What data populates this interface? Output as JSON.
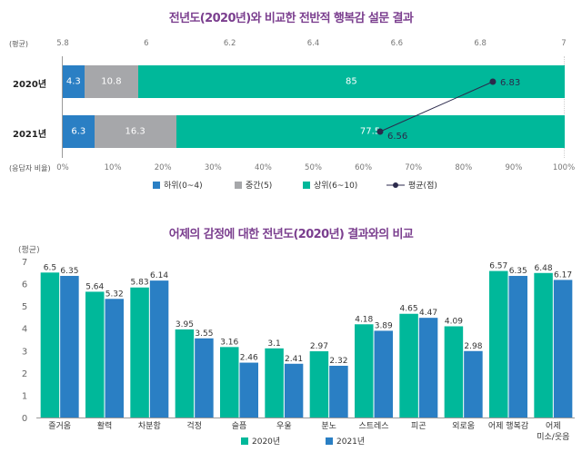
{
  "chart_data": [
    {
      "type": "bar",
      "orientation": "horizontal-stacked",
      "title": "전년도(2020년)와 비교한 전반적 행복감 설문 결과",
      "categories": [
        "2020년",
        "2021년"
      ],
      "xlabel": "(응답자 비율)",
      "x_ticks": [
        "0%",
        "10%",
        "20%",
        "30%",
        "40%",
        "50%",
        "60%",
        "70%",
        "80%",
        "90%",
        "100%"
      ],
      "xlim": [
        0,
        100
      ],
      "series": [
        {
          "name": "하위(0~4)",
          "color": "#2a7fc4",
          "values": [
            4.3,
            6.3
          ]
        },
        {
          "name": "중간(5)",
          "color": "#a6a7aa",
          "values": [
            10.8,
            16.3
          ]
        },
        {
          "name": "상위(6~10)",
          "color": "#00b89a",
          "values": [
            85,
            77.5
          ]
        }
      ],
      "overlay_line": {
        "name": "평균(점)",
        "color": "#2b2a4c",
        "axis_label": "(평균)",
        "axis_ticks": [
          "5.8",
          "6",
          "6.2",
          "6.4",
          "6.6",
          "6.8",
          "7"
        ],
        "axis_range": [
          5.8,
          7
        ],
        "values": [
          6.83,
          6.56
        ],
        "labels": [
          "6.83",
          "6.56"
        ]
      },
      "legend": {
        "position": "bottom",
        "items": [
          {
            "label": "하위(0~4)",
            "color": "#2a7fc4",
            "marker": "square"
          },
          {
            "label": "중간(5)",
            "color": "#a6a7aa",
            "marker": "square"
          },
          {
            "label": "상위(6~10)",
            "color": "#00b89a",
            "marker": "square"
          },
          {
            "label": "평균(점)",
            "color": "#2b2a4c",
            "marker": "line-dot"
          }
        ]
      }
    },
    {
      "type": "bar",
      "orientation": "vertical-grouped",
      "title": "어제의 감정에 대한 전년도(2020년) 결과와의 비교",
      "ylabel": "(평균)",
      "ylim": [
        0,
        7
      ],
      "y_ticks": [
        "0",
        "1",
        "2",
        "3",
        "4",
        "5",
        "6",
        "7"
      ],
      "grid": false,
      "categories": [
        "즐거움",
        "활력",
        "차분함",
        "걱정",
        "슬픔",
        "우울",
        "분노",
        "스트레스",
        "피곤",
        "외로움",
        "어제 행복감",
        "어제\n미소/웃음"
      ],
      "category_lines": [
        [
          "즐거움"
        ],
        [
          "활력"
        ],
        [
          "차분함"
        ],
        [
          "걱정"
        ],
        [
          "슬픔"
        ],
        [
          "우울"
        ],
        [
          "분노"
        ],
        [
          "스트레스"
        ],
        [
          "피곤"
        ],
        [
          "외로움"
        ],
        [
          "어제 행복감"
        ],
        [
          "어제",
          "미소/웃음"
        ]
      ],
      "series": [
        {
          "name": "2020년",
          "color": "#00b89a",
          "values": [
            6.5,
            5.64,
            5.83,
            3.95,
            3.16,
            3.1,
            2.97,
            4.18,
            4.65,
            4.09,
            6.57,
            6.48
          ],
          "labels": [
            "6.5",
            "5.64",
            "5.83",
            "3.95",
            "3.16",
            "3.1",
            "2.97",
            "4.18",
            "4.65",
            "4.09",
            "6.57",
            "6.48"
          ]
        },
        {
          "name": "2021년",
          "color": "#2a7fc4",
          "values": [
            6.35,
            5.32,
            6.14,
            3.55,
            2.46,
            2.41,
            2.32,
            3.89,
            4.47,
            2.98,
            6.35,
            6.17
          ],
          "labels": [
            "6.35",
            "5.32",
            "6.14",
            "3.55",
            "2.46",
            "2.41",
            "2.32",
            "3.89",
            "4.47",
            "2.98",
            "6.35",
            "6.17"
          ]
        }
      ],
      "legend": {
        "position": "bottom",
        "items": [
          {
            "label": "2020년",
            "color": "#00b89a",
            "marker": "square"
          },
          {
            "label": "2021년",
            "color": "#2a7fc4",
            "marker": "square"
          }
        ]
      }
    }
  ]
}
